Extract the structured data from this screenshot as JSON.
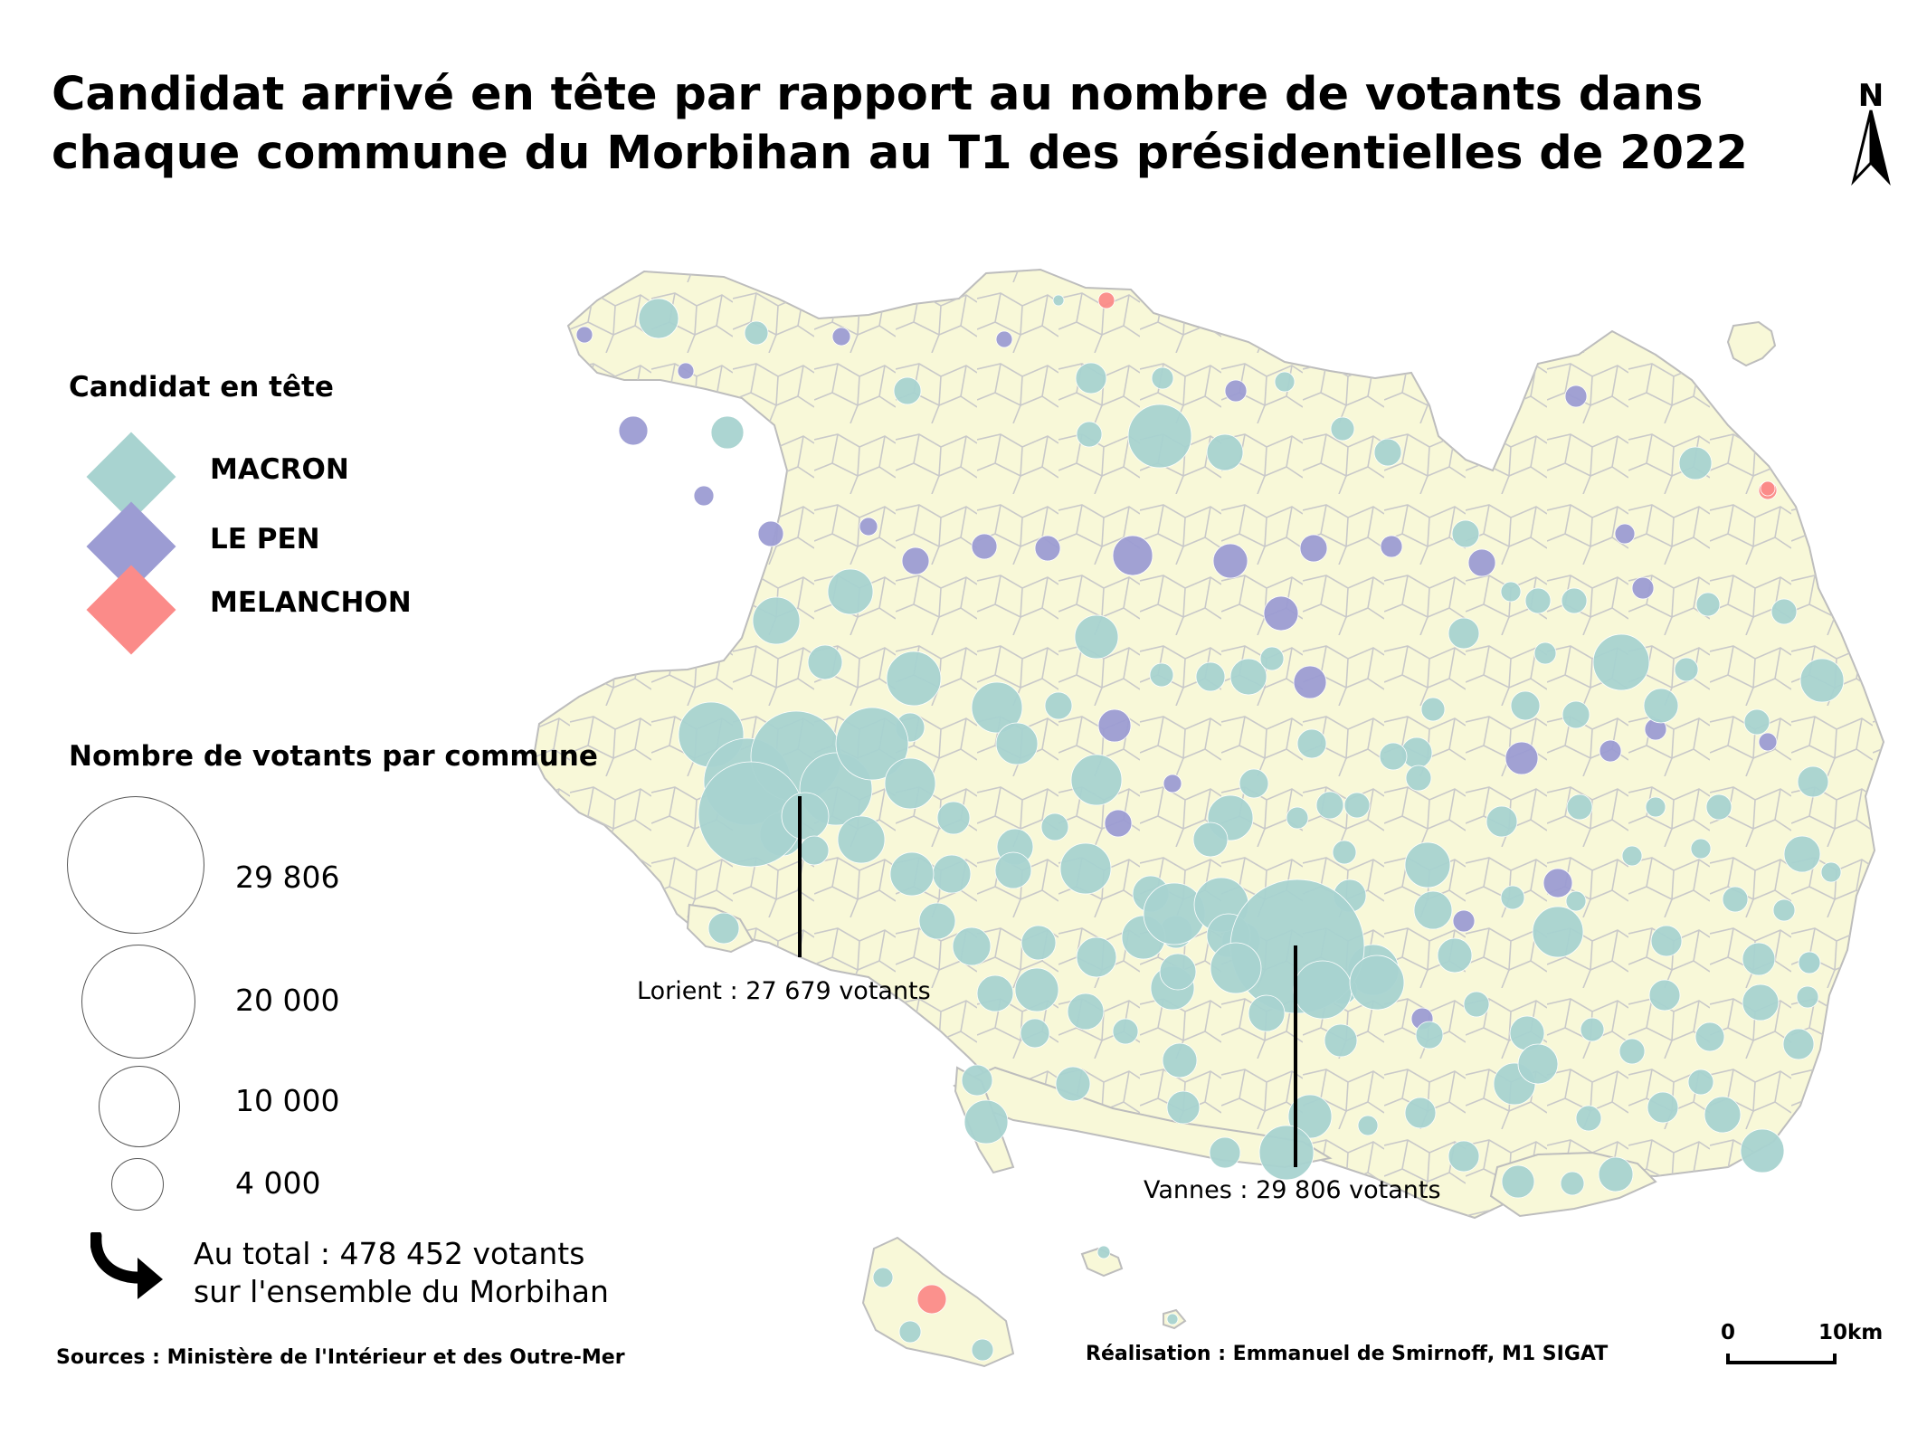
{
  "title": "Candidat arrivé en tête par rapport au nombre de votants dans chaque commune du Morbihan au T1 des présidentielles de 2022",
  "north_arrow": {
    "label": "N"
  },
  "legend_candidates": {
    "title": "Candidat en tête",
    "items": [
      {
        "label": "MACRON",
        "color": "#a8d3d0"
      },
      {
        "label": "LE PEN",
        "color": "#9c9cd3"
      },
      {
        "label": "MELANCHON",
        "color": "#fb8b89"
      }
    ]
  },
  "legend_sizes": {
    "title": "Nombre de votants par commune",
    "items": [
      {
        "label": "29 806",
        "value": 29806
      },
      {
        "label": "20 000",
        "value": 20000
      },
      {
        "label": "10 000",
        "value": 10000
      },
      {
        "label": "4 000",
        "value": 4000
      }
    ]
  },
  "total": {
    "line1": "Au total : 478 452 votants",
    "line2": "sur l'ensemble du Morbihan"
  },
  "callouts": {
    "lorient": "Lorient : 27 679 votants",
    "vannes": "Vannes : 29 806 votants"
  },
  "sources": "Sources : Ministère de l'Intérieur et des Outre-Mer",
  "credit": "Réalisation : Emmanuel de Smirnoff, M1 SIGAT",
  "scale_bar": {
    "start": "0",
    "end": "10km"
  },
  "colors": {
    "land": "#f8f8d8",
    "commune_border": "#c9c9c9",
    "macron": "#a8d3d0",
    "le_pen": "#9c9cd3",
    "melanchon": "#fb8b89"
  }
}
